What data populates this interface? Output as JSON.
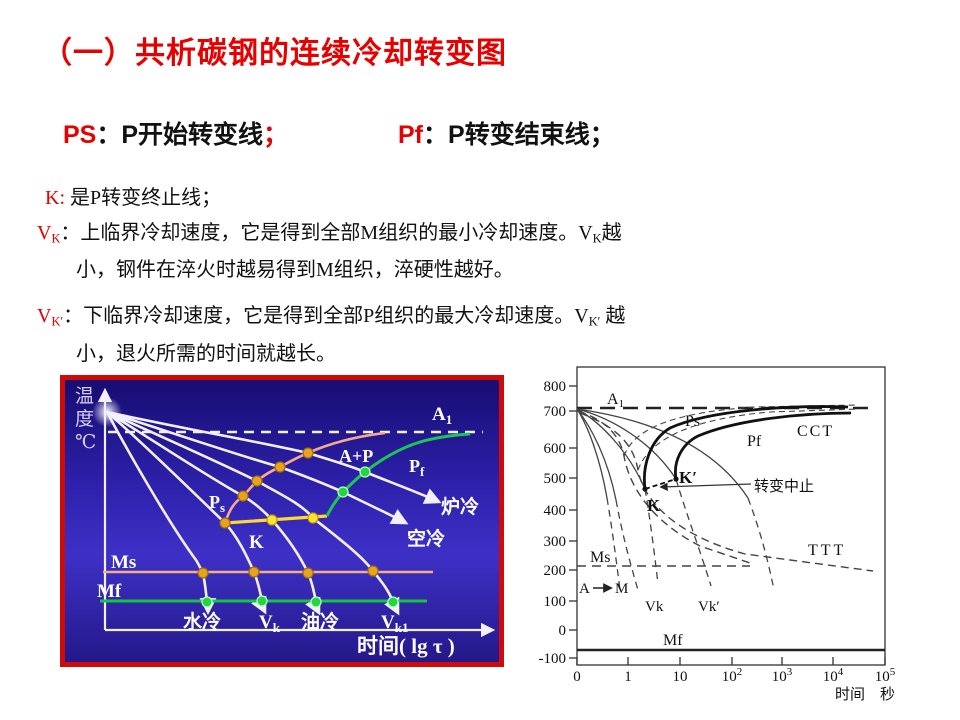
{
  "slide": {
    "accent_red": "#e60000",
    "title": "（一）共析碳钢的连续冷却转变图"
  },
  "text": {
    "ps_def": [
      {
        "t": "PS",
        "c": "#e60000"
      },
      {
        "t": "："
      },
      {
        "t": "P开始转变线"
      },
      {
        "t": "；",
        "c": "#e60000"
      }
    ],
    "pf_def": [
      {
        "t": "Pf",
        "c": "#e60000"
      },
      {
        "t": "："
      },
      {
        "t": "P转变结束线；"
      }
    ],
    "k_def": [
      {
        "t": "K:",
        "c": "#e60000"
      },
      {
        "t": " 是P转变终止线；"
      }
    ],
    "vk_def_1": [
      {
        "t": "V",
        "c": "#e60000"
      },
      {
        "t": "K",
        "c": "#e60000",
        "sub": 1
      },
      {
        "t": "："
      },
      {
        "t": "上临界冷却速度，它是得到全部M组织的最小冷却速度。"
      },
      {
        "t": "V"
      },
      {
        "t": "K",
        "sub": 1
      },
      {
        "t": "越"
      }
    ],
    "vk_def_2": [
      {
        "t": "小，钢件在淬火时越易得到M组织，淬硬性越好。"
      }
    ],
    "vkp_def_1": [
      {
        "t": "V",
        "c": "#e60000"
      },
      {
        "t": "K′",
        "c": "#e60000",
        "sub": 1
      },
      {
        "t": "："
      },
      {
        "t": "下临界冷却速度，它是得到全部P组织的最大冷却速度。"
      },
      {
        "t": "V"
      },
      {
        "t": "K′",
        "sub": 1
      },
      {
        "t": " 越"
      }
    ],
    "vkp_def_2": [
      {
        "t": "小，退火所需的时间就越长。"
      }
    ]
  },
  "left_chart": {
    "frame_color": "#cf0a0a",
    "y_axis_label": "温度℃",
    "x_axis_label": "时间( lg τ )",
    "labels": {
      "a1": {
        "main": "A",
        "sub": "1"
      },
      "a_plus_p": "A+P",
      "pf": {
        "main": "P",
        "sub": "f"
      },
      "ps": {
        "main": "P",
        "sub": "s"
      },
      "k": "K",
      "furnace_cooling": "炉冷",
      "air_cooling": "空冷",
      "ms": "Ms",
      "mf": "Mf",
      "water_cooling": "水冷",
      "vk": {
        "main": "V",
        "sub": "k"
      },
      "oil_cooling": "油冷",
      "vk1": {
        "main": "V",
        "sub": "k1"
      }
    },
    "colors": {
      "curve": "#f2efff",
      "ps_line": "#f6a98e",
      "pf_line": "#1ec455",
      "k_line": "#ffd92e",
      "ms_line": "#efb084",
      "mf_line": "#12c93e",
      "dot_orange": "#e8a31e",
      "dot_yellow": "#ffe42e",
      "dot_green": "#23d53f"
    }
  },
  "right_chart": {
    "y_ticks": [
      "800",
      "700",
      "600",
      "500",
      "400",
      "300",
      "200",
      "100",
      "0",
      "-100"
    ],
    "x_ticks": [
      {
        "base": "0",
        "exp": ""
      },
      {
        "base": "1",
        "exp": ""
      },
      {
        "base": "10",
        "exp": ""
      },
      {
        "base": "10",
        "exp": "2"
      },
      {
        "base": "10",
        "exp": "3"
      },
      {
        "base": "10",
        "exp": "4"
      },
      {
        "base": "10",
        "exp": "5"
      }
    ],
    "x_axis_label": "时间　秒",
    "labels": {
      "a1": {
        "main": "A",
        "sub": "1"
      },
      "ps": "Ps",
      "pf": "Pf",
      "cct": "CCT",
      "k_prime": "K′",
      "k": "K",
      "stop": "转变中止",
      "ttt": "TTT",
      "ms": "Ms",
      "a": "A",
      "m": "M",
      "vk": "Vk",
      "vk_prime": "Vk′",
      "mf": "Mf"
    }
  },
  "chart_data": [
    {
      "type": "line",
      "title": "共析碳钢连续冷却转变示意图",
      "xlabel": "时间( lg τ )",
      "ylabel": "温度℃",
      "reference_lines": [
        "A1 (虚线)",
        "Ms",
        "Mf"
      ],
      "transformation_lines": [
        "Ps (P开始转变线)",
        "Pf (P转变结束线)",
        "K (P转变终止线)"
      ],
      "cooling_curves": [
        "水冷",
        "Vk",
        "油冷",
        "Vk1",
        "空冷",
        "炉冷"
      ],
      "region_label": "A+P",
      "grid": false
    },
    {
      "type": "line",
      "title": "CCT 与 TTT 曲线对比",
      "xlabel": "时间 秒",
      "ylabel": "温度",
      "x_ticks": [
        "0",
        "1",
        "10",
        "10^2",
        "10^3",
        "10^4",
        "10^5"
      ],
      "x_scale": "log",
      "y_ticks": [
        800,
        700,
        600,
        500,
        400,
        300,
        200,
        100,
        0,
        -100
      ],
      "ylim": [
        -100,
        800
      ],
      "reference_lines": {
        "A1": 730,
        "Ms": 220,
        "Mf": -65
      },
      "curves": [
        "Ps (CCT, 粗实线)",
        "Pf (CCT, 粗实线)",
        "TTT (虚线)",
        "Vk",
        "Vk′",
        "K",
        "K′",
        "转变中止"
      ],
      "grid": false
    }
  ]
}
